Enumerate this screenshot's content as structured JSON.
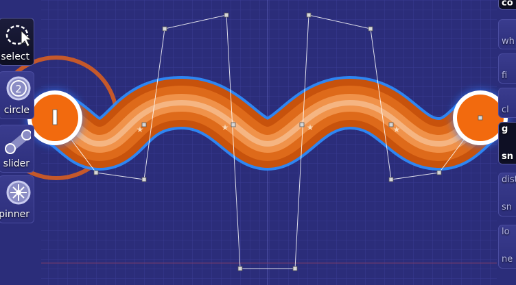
{
  "toolbox": {
    "left": [
      {
        "name": "select",
        "label": "select",
        "icon": "select-arrow-icon",
        "active": true
      },
      {
        "name": "circle",
        "label": "circle",
        "icon": "circle-two-icon",
        "active": false
      },
      {
        "name": "slider",
        "label": "slider",
        "icon": "slider-icon",
        "active": false
      },
      {
        "name": "spinner",
        "label": "spinner",
        "icon": "spinner-icon",
        "active": false
      }
    ],
    "right": [
      {
        "name": "combo",
        "label": "co",
        "icon": "combo-icon"
      },
      {
        "name": "whistle",
        "label": "wh",
        "icon": "whistle-icon"
      },
      {
        "name": "finish",
        "label": "fi",
        "icon": "finish-icon"
      },
      {
        "name": "clap",
        "label": "cl",
        "icon": "clap-icon"
      },
      {
        "name": "grid",
        "label": "g",
        "icon": "grid-snap-icon"
      },
      {
        "name": "snap",
        "label": "sn",
        "icon": "snap-icon"
      },
      {
        "name": "distance",
        "label": "dist",
        "icon": "distance-icon"
      },
      {
        "name": "distance-snap",
        "label": "sn",
        "icon": "distance-snap-icon"
      },
      {
        "name": "lock",
        "label": "lo",
        "icon": "lock-icon"
      },
      {
        "name": "new",
        "label": "ne",
        "icon": "new-combo-icon"
      }
    ]
  },
  "colors": {
    "background": "#2b2d7a",
    "grid": "#3d3f94",
    "slider_border": "#2f8fff",
    "slider_body": "#e86a10",
    "hitcircle": "#f26a0e",
    "approach": "#e0601c",
    "control_line": "#ffffff"
  }
}
